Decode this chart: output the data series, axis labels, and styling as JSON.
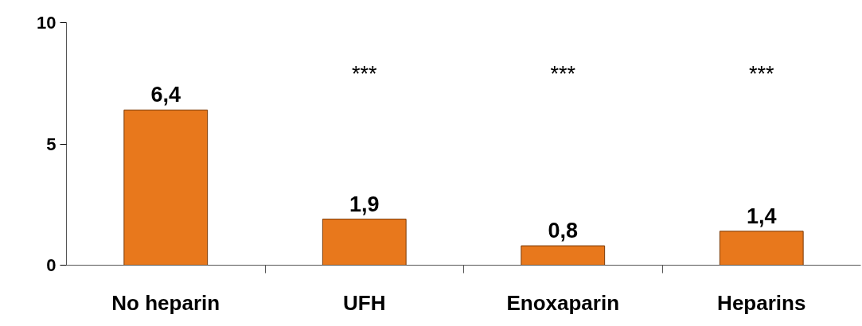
{
  "chart_data": {
    "type": "bar",
    "categories": [
      "No heparin",
      "UFH",
      "Enoxaparin",
      "Heparins"
    ],
    "values": [
      6.4,
      1.9,
      0.8,
      1.4
    ],
    "value_labels": [
      "6,4",
      "1,9",
      "0,8",
      "1,4"
    ],
    "color": "#e8781c",
    "ylim": [
      0,
      10
    ],
    "yticks": [
      0,
      5,
      10
    ],
    "annotations": [
      "***",
      "***",
      "***"
    ],
    "grid": false
  }
}
